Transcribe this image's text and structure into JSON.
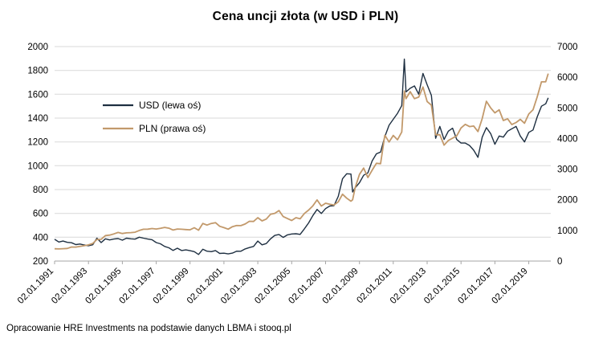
{
  "title": "Cena uncji złota (w USD i PLN)",
  "footer": "Opracowanie HRE Investments na podstawie danych LBMA i stooq.pl",
  "colors": {
    "usd_line": "#1E2F41",
    "pln_line": "#C2996B",
    "grid": "#D9D9D9",
    "axis": "#A6A6A6",
    "text": "#000000",
    "background": "#FFFFFF"
  },
  "chart_data": {
    "type": "line",
    "title": "Cena uncji złota (w USD i PLN)",
    "xlabel": "",
    "ylabel_left": "",
    "ylabel_right": "",
    "grid": "horizontal-only",
    "legend_position": "top-left-inside",
    "axis_left": {
      "min": 200,
      "max": 2000,
      "step": 200
    },
    "axis_right": {
      "min": 0,
      "max": 7000,
      "step": 1000
    },
    "x_range": [
      1991.0,
      2020.3
    ],
    "x_tick_years": [
      1991,
      1993,
      1995,
      1997,
      1999,
      2001,
      2003,
      2005,
      2007,
      2009,
      2011,
      2013,
      2015,
      2017,
      2019
    ],
    "x_tick_labels": [
      "02.01.1991",
      "02.01.1993",
      "02.01.1995",
      "02.01.1997",
      "02.01.1999",
      "02.01.2001",
      "02.01.2003",
      "02.01.2005",
      "02.01.2007",
      "02.01.2009",
      "02.01.2011",
      "02.01.2013",
      "02.01.2015",
      "02.01.2017",
      "02.01.2019"
    ],
    "x": [
      1991,
      1991.25,
      1991.5,
      1991.75,
      1992,
      1992.25,
      1992.5,
      1992.75,
      1993,
      1993.25,
      1993.5,
      1993.75,
      1994,
      1994.25,
      1994.5,
      1994.75,
      1995,
      1995.25,
      1995.5,
      1995.75,
      1996,
      1996.25,
      1996.5,
      1996.75,
      1997,
      1997.25,
      1997.5,
      1997.75,
      1998,
      1998.25,
      1998.5,
      1998.75,
      1999,
      1999.25,
      1999.5,
      1999.75,
      2000,
      2000.25,
      2000.5,
      2000.75,
      2001,
      2001.25,
      2001.5,
      2001.75,
      2002,
      2002.25,
      2002.5,
      2002.75,
      2003,
      2003.25,
      2003.5,
      2003.75,
      2004,
      2004.25,
      2004.5,
      2004.75,
      2005,
      2005.25,
      2005.5,
      2005.75,
      2006,
      2006.25,
      2006.5,
      2006.75,
      2007,
      2007.25,
      2007.5,
      2007.75,
      2008,
      2008.25,
      2008.5,
      2008.6,
      2008.75,
      2009,
      2009.25,
      2009.5,
      2009.75,
      2010,
      2010.25,
      2010.5,
      2010.75,
      2011,
      2011.25,
      2011.5,
      2011.65,
      2011.75,
      2012,
      2012.25,
      2012.5,
      2012.75,
      2013,
      2013.25,
      2013.5,
      2013.75,
      2014,
      2014.25,
      2014.5,
      2014.75,
      2015,
      2015.25,
      2015.5,
      2015.75,
      2016,
      2016.25,
      2016.5,
      2016.75,
      2017,
      2017.25,
      2017.5,
      2017.75,
      2018,
      2018.25,
      2018.5,
      2018.75,
      2019,
      2019.25,
      2019.5,
      2019.75,
      2020,
      2020.15
    ],
    "series": [
      {
        "name": "USD (lewa oś)",
        "axis": "left",
        "color": "#1E2F41",
        "values": [
          383,
          360,
          368,
          357,
          354,
          338,
          343,
          335,
          329,
          337,
          392,
          355,
          387,
          377,
          385,
          389,
          375,
          392,
          387,
          384,
          400,
          392,
          385,
          379,
          355,
          345,
          323,
          311,
          289,
          308,
          288,
          294,
          287,
          279,
          255,
          299,
          283,
          279,
          288,
          264,
          266,
          260,
          267,
          283,
          282,
          302,
          313,
          323,
          368,
          336,
          347,
          386,
          415,
          423,
          398,
          420,
          427,
          429,
          424,
          470,
          520,
          582,
          633,
          599,
          640,
          662,
          665,
          743,
          890,
          933,
          930,
          780,
          815,
          857,
          920,
          940,
          1040,
          1100,
          1115,
          1244,
          1340,
          1390,
          1440,
          1505,
          1895,
          1620,
          1650,
          1670,
          1600,
          1775,
          1680,
          1590,
          1230,
          1330,
          1220,
          1290,
          1315,
          1220,
          1190,
          1190,
          1170,
          1130,
          1070,
          1240,
          1320,
          1270,
          1180,
          1250,
          1240,
          1290,
          1310,
          1330,
          1250,
          1200,
          1280,
          1300,
          1410,
          1500,
          1520,
          1570
        ]
      },
      {
        "name": "PLN (prawa oś)",
        "axis": "right",
        "color": "#C2996B",
        "values": [
          402,
          396,
          405,
          412,
          460,
          456,
          480,
          502,
          526,
          573,
          706,
          710,
          832,
          848,
          885,
          934,
          900,
          921,
          929,
          941,
          1000,
          1039,
          1040,
          1061,
          1047,
          1070,
          1098,
          1073,
          1012,
          1047,
          1037,
          1029,
          1019,
          1088,
          1007,
          1226,
          1174,
          1228,
          1253,
          1135,
          1091,
          1040,
          1121,
          1160,
          1156,
          1208,
          1299,
          1292,
          1417,
          1310,
          1371,
          1525,
          1556,
          1650,
          1453,
          1386,
          1324,
          1416,
          1378,
          1551,
          1664,
          1804,
          1994,
          1797,
          1888,
          1854,
          1829,
          1932,
          2181,
          2053,
          1953,
          2000,
          2400,
          2828,
          3036,
          2726,
          2964,
          3190,
          3178,
          4105,
          3886,
          4100,
          3960,
          4214,
          5550,
          5300,
          5530,
          5300,
          5350,
          5680,
          5208,
          5088,
          4120,
          4123,
          3782,
          3935,
          4011,
          4087,
          4344,
          4463,
          4388,
          4407,
          4227,
          4650,
          5214,
          5000,
          4838,
          4938,
          4588,
          4644,
          4454,
          4522,
          4625,
          4500,
          4800,
          4940,
          5358,
          5850,
          5852,
          6120
        ]
      }
    ]
  }
}
